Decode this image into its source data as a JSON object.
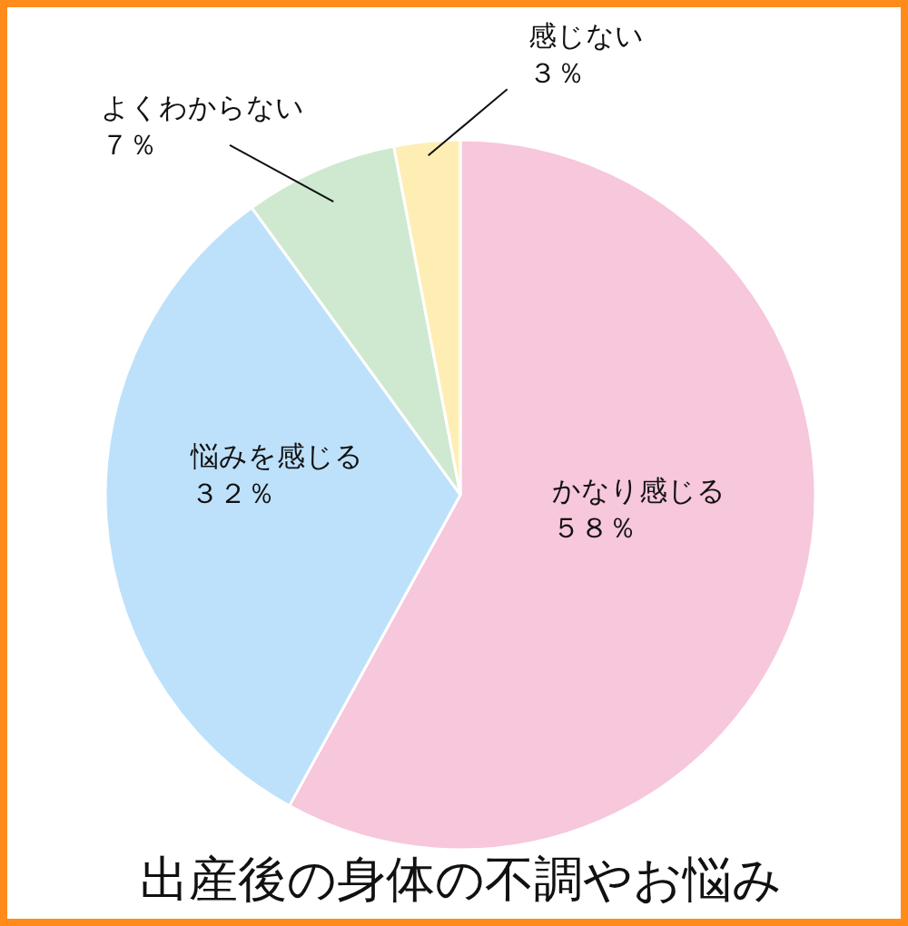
{
  "chart_data": {
    "type": "pie",
    "title": "出産後の身体の不調やお悩み",
    "categories": [
      "かなり感じる",
      "悩みを感じる",
      "よくわからない",
      "感じない"
    ],
    "values": [
      58,
      32,
      7,
      3
    ],
    "colors": [
      "#f7c7dc",
      "#bee1fb",
      "#cee9cf",
      "#feeeb4"
    ],
    "value_labels": [
      "５８％",
      "３２％",
      "７％",
      "３％"
    ]
  }
}
